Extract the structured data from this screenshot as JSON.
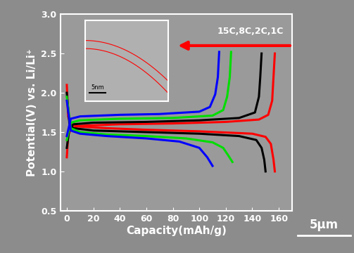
{
  "chart_data": {
    "type": "line",
    "x_label": "Capacity(mAh/g)",
    "y_label": "Potential(V) vs. Li/Li⁺",
    "xlim": [
      -5,
      170
    ],
    "xticks": [
      0,
      20,
      40,
      60,
      80,
      100,
      120,
      140,
      160
    ],
    "ylim": [
      0.5,
      3.0
    ],
    "yticks": [
      0.5,
      1.0,
      1.5,
      2.0,
      2.5,
      3.0
    ],
    "grid": false,
    "annotations": [
      "15C,8C,2C,1C",
      "5nm",
      "5μm"
    ],
    "series": [
      {
        "color": "#ff0000",
        "x": [
          0,
          1,
          3,
          10,
          30,
          60,
          100,
          140,
          150,
          154,
          156,
          157
        ],
        "values": [
          2.1,
          1.7,
          1.6,
          1.57,
          1.55,
          1.53,
          1.51,
          1.48,
          1.44,
          1.35,
          1.15,
          1.0
        ]
      },
      {
        "color": "#ff0000",
        "x": [
          0,
          1,
          3,
          10,
          40,
          80,
          120,
          145,
          152,
          155,
          156,
          157
        ],
        "values": [
          1.18,
          1.45,
          1.55,
          1.58,
          1.6,
          1.61,
          1.63,
          1.66,
          1.72,
          1.9,
          2.2,
          2.5
        ]
      },
      {
        "color": "#000000",
        "x": [
          0,
          2,
          5,
          20,
          60,
          100,
          130,
          143,
          147,
          149,
          150
        ],
        "values": [
          2.0,
          1.6,
          1.55,
          1.52,
          1.5,
          1.48,
          1.45,
          1.4,
          1.3,
          1.15,
          1.0
        ]
      },
      {
        "color": "#000000",
        "x": [
          0,
          2,
          5,
          20,
          60,
          100,
          130,
          142,
          145,
          146,
          147
        ],
        "values": [
          1.3,
          1.55,
          1.6,
          1.62,
          1.63,
          1.65,
          1.68,
          1.75,
          1.95,
          2.2,
          2.5
        ]
      },
      {
        "color": "#00dd00",
        "x": [
          0,
          3,
          10,
          30,
          60,
          90,
          110,
          118,
          122,
          125
        ],
        "values": [
          1.95,
          1.55,
          1.5,
          1.47,
          1.45,
          1.42,
          1.37,
          1.3,
          1.2,
          1.12
        ]
      },
      {
        "color": "#00dd00",
        "x": [
          0,
          3,
          10,
          40,
          80,
          110,
          118,
          121,
          123,
          124
        ],
        "values": [
          1.4,
          1.62,
          1.65,
          1.67,
          1.68,
          1.71,
          1.78,
          1.95,
          2.2,
          2.52
        ]
      },
      {
        "color": "#0000ff",
        "x": [
          0,
          3,
          10,
          30,
          60,
          85,
          100,
          106,
          110
        ],
        "values": [
          1.9,
          1.52,
          1.48,
          1.45,
          1.42,
          1.38,
          1.3,
          1.18,
          1.07
        ]
      },
      {
        "color": "#0000ff",
        "x": [
          0,
          3,
          10,
          40,
          70,
          100,
          108,
          112,
          114,
          115
        ],
        "values": [
          1.45,
          1.67,
          1.7,
          1.72,
          1.73,
          1.76,
          1.82,
          1.98,
          2.2,
          2.52
        ]
      }
    ]
  }
}
